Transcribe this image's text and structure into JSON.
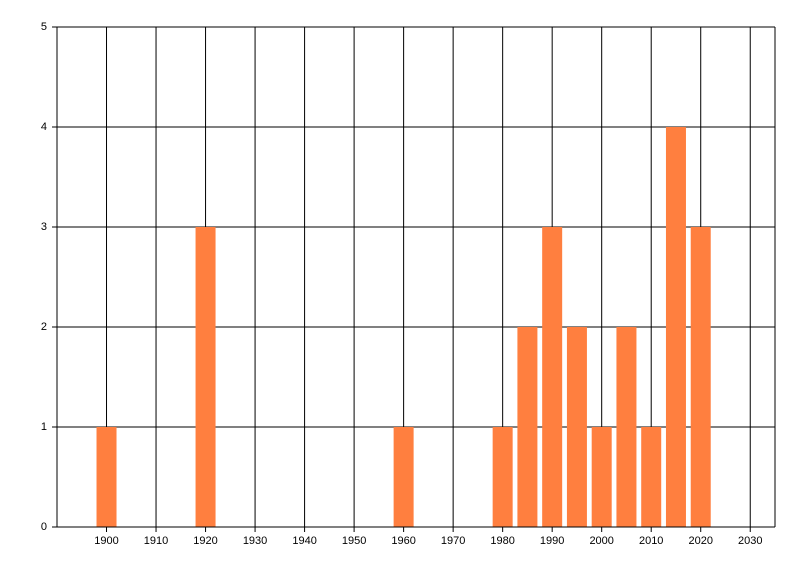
{
  "chart_data": {
    "type": "bar",
    "x": [
      1900,
      1920,
      1960,
      1980,
      1985,
      1990,
      1995,
      2000,
      2005,
      2010,
      2015,
      2020
    ],
    "values": [
      1,
      3,
      1,
      1,
      2,
      3,
      2,
      1,
      2,
      1,
      4,
      3
    ],
    "color": "#ff7f3f",
    "xlim": [
      1890,
      2035
    ],
    "xticks": [
      1900,
      1910,
      1920,
      1930,
      1940,
      1950,
      1960,
      1970,
      1980,
      1990,
      2000,
      2010,
      2020,
      2030
    ],
    "ylim": [
      0,
      5
    ],
    "yticks": [
      0,
      1,
      2,
      3,
      4,
      5
    ],
    "grid": true
  }
}
